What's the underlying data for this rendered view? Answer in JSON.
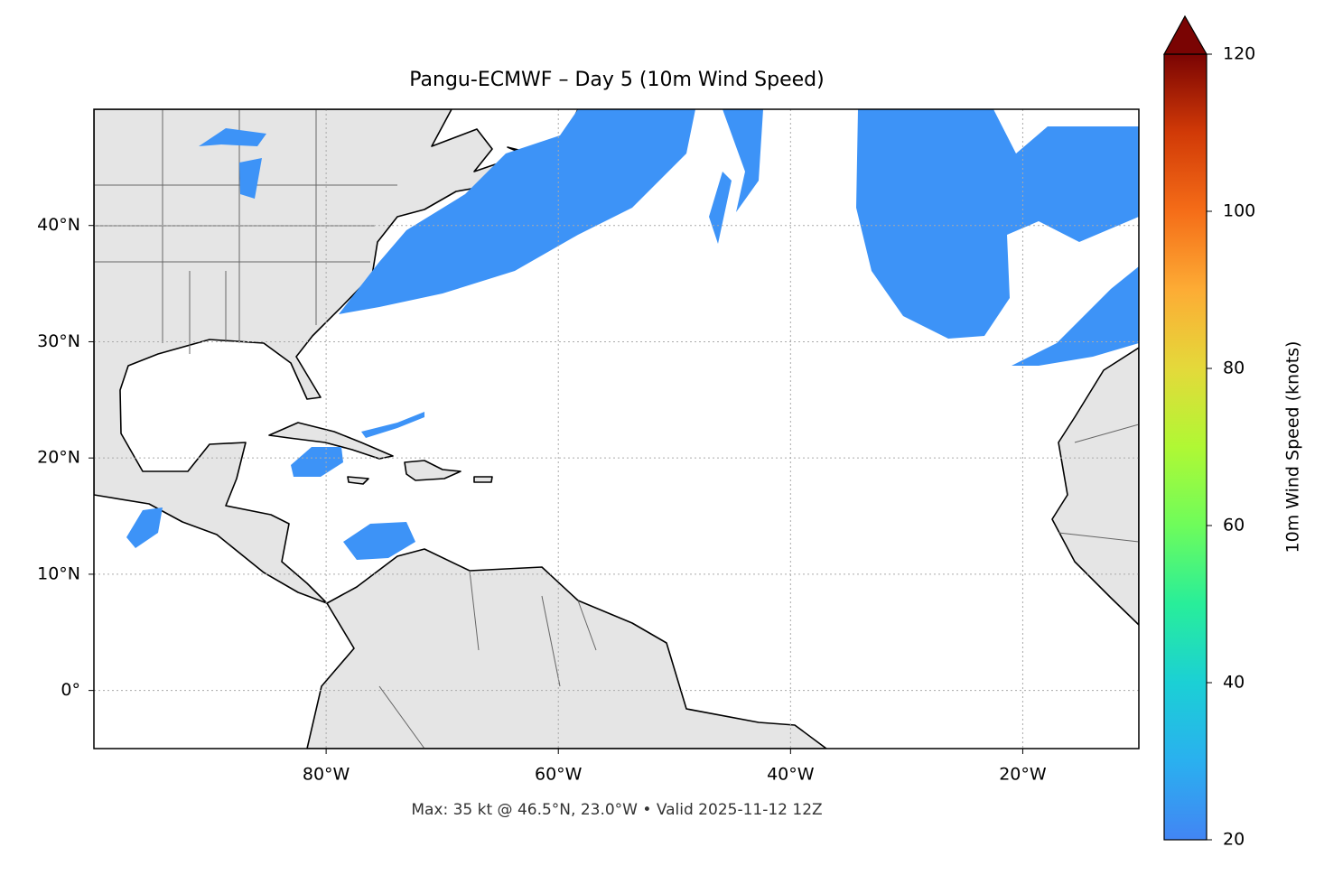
{
  "title": "Pangu-ECMWF – Day 5 (10m Wind Speed)",
  "note": "Max: 35 kt @ 46.5°N, 23.0°W • Valid 2025-11-12 12Z",
  "map": {
    "xlim": [
      -100,
      -10
    ],
    "ylim": [
      -5,
      50
    ],
    "xticks": [
      {
        "value": -80,
        "label": "80°W"
      },
      {
        "value": -60,
        "label": "60°W"
      },
      {
        "value": -40,
        "label": "40°W"
      },
      {
        "value": -20,
        "label": "20°W"
      }
    ],
    "yticks": [
      {
        "value": 0,
        "label": "0°"
      },
      {
        "value": 10,
        "label": "10°N"
      },
      {
        "value": 20,
        "label": "20°N"
      },
      {
        "value": 30,
        "label": "30°N"
      },
      {
        "value": 40,
        "label": "40°N"
      }
    ],
    "grid": true
  },
  "colorbar": {
    "label": "10m Wind Speed (knots)",
    "range": [
      20,
      120
    ],
    "ticks": [
      20,
      40,
      60,
      80,
      100,
      120
    ]
  }
}
